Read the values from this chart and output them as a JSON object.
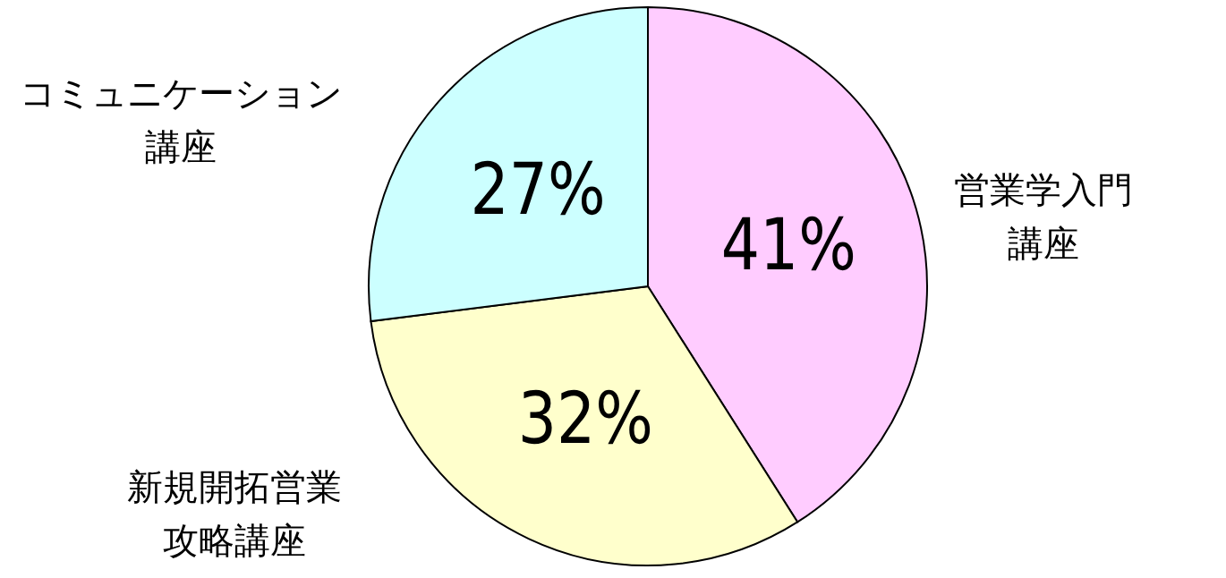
{
  "chart_data": {
    "type": "pie",
    "categories": [
      "営業学入門講座",
      "新規開拓営業攻略講座",
      "コミュニケーション講座"
    ],
    "values": [
      41,
      32,
      27
    ],
    "colors": [
      "#ffccff",
      "#ffffcc",
      "#ccffff"
    ],
    "value_labels": [
      "41%",
      "32%",
      "27%"
    ]
  }
}
